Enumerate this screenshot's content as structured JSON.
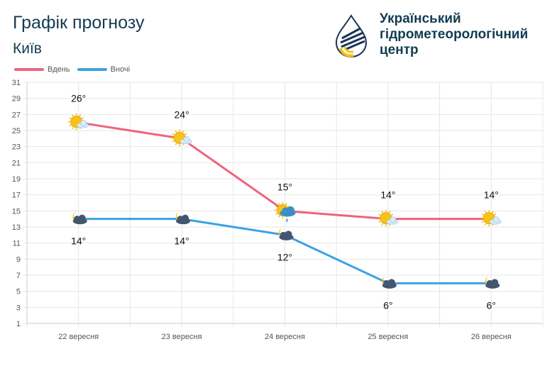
{
  "header": {
    "title": "Графік прогнозу",
    "city": "Київ",
    "org_line1": "Український",
    "org_line2": "гідрометеорологічний",
    "org_line3": "центр",
    "logo_colors": {
      "navy": "#1c3556",
      "yellow": "#f5c21b"
    }
  },
  "chart_data": {
    "type": "line",
    "categories": [
      "22 вересня",
      "23 вересня",
      "24 вересня",
      "25 вересня",
      "26 вересня"
    ],
    "series": [
      {
        "name": "Вдень",
        "color": "#f0627f",
        "values": [
          26,
          24,
          15,
          14,
          14
        ],
        "labels": [
          "26°",
          "24°",
          "15°",
          "14°",
          "14°"
        ],
        "icons": [
          "sun-cloud-icon",
          "sun-cloud-icon",
          "sun-rain-icon",
          "sun-cloud-icon",
          "sun-cloud-icon"
        ]
      },
      {
        "name": "Вночі",
        "color": "#3aa3e3",
        "values": [
          14,
          14,
          12,
          6,
          6
        ],
        "labels": [
          "14°",
          "14°",
          "12°",
          "6°",
          "6°"
        ],
        "icons": [
          "moon-cloud-icon",
          "moon-cloud-icon",
          "moon-cloud-icon",
          "moon-cloud-icon",
          "moon-cloud-icon"
        ]
      }
    ],
    "ylim": [
      1,
      31
    ],
    "yticks": [
      "31",
      "29",
      "27",
      "25",
      "23",
      "21",
      "19",
      "17",
      "15",
      "13",
      "11",
      "9",
      "7",
      "5",
      "3",
      "1"
    ],
    "grid": true,
    "legend_position": "top-left"
  }
}
